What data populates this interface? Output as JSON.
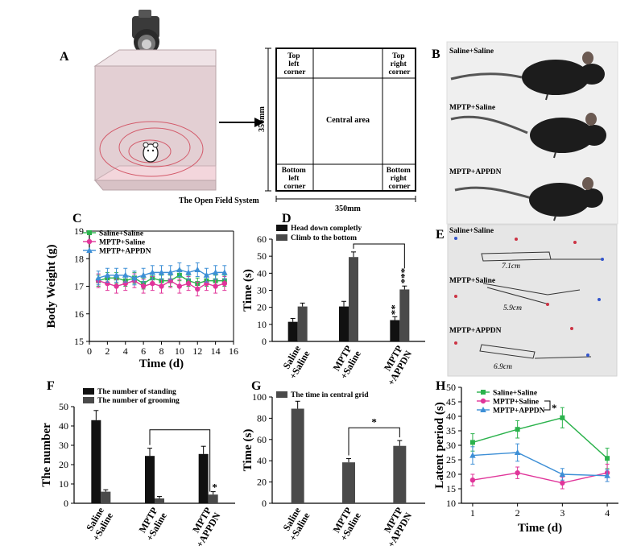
{
  "panel_letters": {
    "A": "A",
    "B": "B",
    "C": "C",
    "D": "D",
    "E": "E",
    "F": "F",
    "G": "G",
    "H": "H"
  },
  "panelA": {
    "caption": "The Open Field System",
    "dim_vertical": "350mm",
    "dim_horizontal": "350mm",
    "regions": {
      "top_left": [
        "Top",
        "left",
        "corner"
      ],
      "top_right": [
        "Top",
        "right",
        "corner"
      ],
      "center": "Central area",
      "bottom_left": [
        "Bottom",
        "left",
        "corner"
      ],
      "bottom_right": [
        "Bottom",
        "right",
        "corner"
      ]
    }
  },
  "panelB": {
    "labels": [
      "Saline+Saline",
      "MPTP+Saline",
      "MPTP+APPDN"
    ]
  },
  "panelE": {
    "labels": [
      "Saline+Saline",
      "MPTP+Saline",
      "MPTP+APPDN"
    ],
    "measurements": [
      "7.1cm",
      "5.9cm",
      "6.9cm"
    ]
  },
  "colors": {
    "green": "#2bb24c",
    "magenta": "#e0359a",
    "blue": "#3d8fd6",
    "black": "#111111",
    "gray": "#4a4a4a",
    "photo_bg": "#e9e9e9"
  },
  "chart_data": [
    {
      "panel": "C",
      "type": "line",
      "xlabel": "Time (d)",
      "ylabel": "Body Weight (g)",
      "xlim": [
        0,
        16
      ],
      "ylim": [
        15,
        19
      ],
      "xticks": [
        "0",
        "2",
        "4",
        "6",
        "8",
        "10",
        "12",
        "14",
        "16"
      ],
      "yticks": [
        "15",
        "16",
        "17",
        "18",
        "19"
      ],
      "x": [
        1,
        2,
        3,
        4,
        5,
        6,
        7,
        8,
        9,
        10,
        11,
        12,
        13,
        14,
        15
      ],
      "series": [
        {
          "name": "Saline+Saline",
          "color": "#2bb24c",
          "marker": "square",
          "values": [
            17.2,
            17.3,
            17.3,
            17.2,
            17.3,
            17.1,
            17.3,
            17.2,
            17.2,
            17.4,
            17.2,
            17.1,
            17.2,
            17.2,
            17.2
          ],
          "errors": [
            0.2,
            0.2,
            0.2,
            0.2,
            0.2,
            0.2,
            0.2,
            0.2,
            0.2,
            0.2,
            0.2,
            0.2,
            0.2,
            0.2,
            0.2
          ]
        },
        {
          "name": "MPTP+Saline",
          "color": "#e0359a",
          "marker": "circle",
          "values": [
            17.2,
            17.1,
            17.0,
            17.1,
            17.2,
            17.0,
            17.1,
            17.0,
            17.2,
            17.0,
            17.1,
            16.9,
            17.1,
            17.0,
            17.1
          ],
          "errors": [
            0.25,
            0.25,
            0.25,
            0.25,
            0.25,
            0.25,
            0.25,
            0.25,
            0.25,
            0.25,
            0.25,
            0.25,
            0.25,
            0.25,
            0.25
          ]
        },
        {
          "name": "MPTP+APPDN",
          "color": "#3d8fd6",
          "marker": "triangle",
          "values": [
            17.3,
            17.4,
            17.4,
            17.4,
            17.3,
            17.4,
            17.5,
            17.5,
            17.5,
            17.6,
            17.5,
            17.6,
            17.4,
            17.5,
            17.5
          ],
          "errors": [
            0.25,
            0.25,
            0.25,
            0.25,
            0.25,
            0.25,
            0.25,
            0.25,
            0.25,
            0.25,
            0.25,
            0.25,
            0.25,
            0.25,
            0.25
          ]
        }
      ]
    },
    {
      "panel": "D",
      "type": "bar",
      "ylabel": "Time (s)",
      "ylim": [
        0,
        60
      ],
      "yticks": [
        "0",
        "10",
        "20",
        "30",
        "40",
        "50",
        "60"
      ],
      "categories": [
        "Saline\n+Saline",
        "MPTP\n+Saline",
        "MPTP\n+APPDN"
      ],
      "series": [
        {
          "name": "Head down completly",
          "color": "#111111",
          "values": [
            11.5,
            20.5,
            12.5
          ],
          "errors": [
            2,
            3,
            2
          ]
        },
        {
          "name": "Climb to the bottom",
          "color": "#4a4a4a",
          "values": [
            20.5,
            49.5,
            30.5
          ],
          "errors": [
            2,
            3,
            2
          ]
        }
      ],
      "annotations": [
        "**",
        "***"
      ]
    },
    {
      "panel": "F",
      "type": "bar",
      "ylabel": "The number",
      "ylim": [
        0,
        50
      ],
      "yticks": [
        "0",
        "10",
        "20",
        "30",
        "40",
        "50"
      ],
      "categories": [
        "Saline\n+Saline",
        "MPTP\n+Saline",
        "MPTP\n+APPDN"
      ],
      "series": [
        {
          "name": "The number of standing",
          "color": "#111111",
          "values": [
            43,
            24.5,
            25.5
          ],
          "errors": [
            5,
            4,
            4
          ]
        },
        {
          "name": "The number of grooming",
          "color": "#4a4a4a",
          "values": [
            6,
            2.5,
            4.5
          ],
          "errors": [
            1,
            1,
            1.5
          ]
        }
      ],
      "annotations": [
        "*"
      ]
    },
    {
      "panel": "G",
      "type": "bar",
      "ylabel": "Time (s)",
      "ylim": [
        0,
        100
      ],
      "yticks": [
        "0",
        "20",
        "40",
        "60",
        "80",
        "100"
      ],
      "categories": [
        "Saline\n+Saline",
        "MPTP\n+Saline",
        "MPTP\n+APPDN"
      ],
      "series": [
        {
          "name": "The time in central grid",
          "color": "#4a4a4a",
          "values": [
            89,
            38.5,
            54
          ],
          "errors": [
            7,
            3.5,
            5
          ]
        }
      ],
      "annotations": [
        "*"
      ]
    },
    {
      "panel": "H",
      "type": "line",
      "xlabel": "Time (d)",
      "ylabel": "Latent period (s)",
      "xlim": [
        0.75,
        4.25
      ],
      "ylim": [
        10,
        50
      ],
      "xticks": [
        "1",
        "2",
        "3",
        "4"
      ],
      "yticks": [
        "10",
        "15",
        "20",
        "25",
        "30",
        "35",
        "40",
        "45",
        "50"
      ],
      "x": [
        1,
        2,
        3,
        4
      ],
      "series": [
        {
          "name": "Saline+Saline",
          "color": "#2bb24c",
          "marker": "square",
          "values": [
            31,
            35.5,
            39.5,
            25.5
          ],
          "errors": [
            3,
            3,
            3.5,
            3.5
          ]
        },
        {
          "name": "MPTP+Saline",
          "color": "#e0359a",
          "marker": "circle",
          "values": [
            18,
            20.5,
            17,
            20.5
          ],
          "errors": [
            2,
            2,
            2,
            3
          ]
        },
        {
          "name": "MPTP+APPDN",
          "color": "#3d8fd6",
          "marker": "triangle",
          "values": [
            26.5,
            27.5,
            20,
            19.5
          ],
          "errors": [
            3,
            3,
            2,
            2
          ]
        }
      ],
      "annotations": [
        "*"
      ]
    }
  ]
}
